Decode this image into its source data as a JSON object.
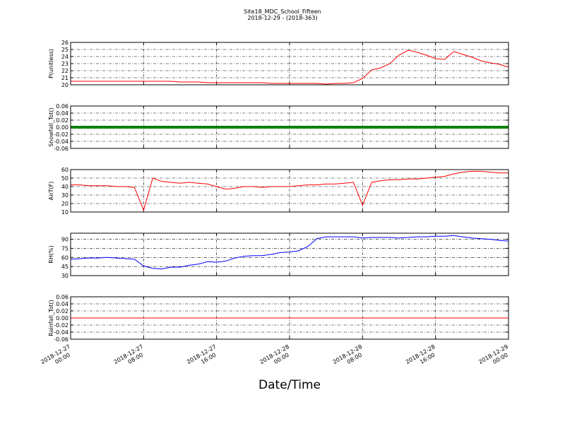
{
  "chart_data": [
    {
      "type": "line",
      "title": "Site18_MDC_School_Fifteen",
      "subtitle": "2018-12-29 - (2018-363)",
      "ylabel": "P(unitless)",
      "x": [
        "2018-12-27 00:00",
        "2018-12-27 01:00",
        "2018-12-27 02:00",
        "2018-12-27 03:00",
        "2018-12-27 04:00",
        "2018-12-27 05:00",
        "2018-12-27 06:00",
        "2018-12-27 07:00",
        "2018-12-27 08:00",
        "2018-12-27 09:00",
        "2018-12-27 10:00",
        "2018-12-27 11:00",
        "2018-12-27 12:00",
        "2018-12-27 13:00",
        "2018-12-27 14:00",
        "2018-12-27 15:00",
        "2018-12-27 16:00",
        "2018-12-27 17:00",
        "2018-12-27 18:00",
        "2018-12-27 19:00",
        "2018-12-27 20:00",
        "2018-12-27 21:00",
        "2018-12-27 22:00",
        "2018-12-27 23:00",
        "2018-12-28 00:00",
        "2018-12-28 01:00",
        "2018-12-28 02:00",
        "2018-12-28 03:00",
        "2018-12-28 04:00",
        "2018-12-28 05:00",
        "2018-12-28 06:00",
        "2018-12-28 07:00",
        "2018-12-28 08:00",
        "2018-12-28 09:00",
        "2018-12-28 10:00",
        "2018-12-28 11:00",
        "2018-12-28 12:00",
        "2018-12-28 13:00",
        "2018-12-28 14:00",
        "2018-12-28 15:00",
        "2018-12-28 16:00",
        "2018-12-28 17:00",
        "2018-12-28 18:00",
        "2018-12-28 19:00",
        "2018-12-28 20:00",
        "2018-12-28 21:00",
        "2018-12-28 22:00",
        "2018-12-28 23:00",
        "2018-12-29 00:00"
      ],
      "series": [
        {
          "name": "P",
          "color": "#ff0000",
          "values": [
            20.5,
            20.5,
            20.5,
            20.5,
            20.5,
            20.5,
            20.5,
            20.5,
            20.5,
            20.5,
            20.5,
            20.5,
            20.4,
            20.4,
            20.4,
            20.3,
            20.3,
            20.3,
            20.3,
            20.3,
            20.3,
            20.3,
            20.2,
            20.2,
            20.2,
            20.2,
            20.2,
            20.2,
            20.1,
            20.2,
            20.2,
            20.3,
            20.9,
            22.1,
            22.4,
            23.0,
            24.2,
            24.9,
            24.6,
            24.2,
            23.7,
            23.6,
            24.7,
            24.3,
            23.9,
            23.4,
            23.1,
            22.9,
            22.5
          ]
        }
      ],
      "ylim": [
        20,
        26
      ],
      "yticks": [
        20,
        21,
        22,
        23,
        24,
        25,
        26
      ]
    },
    {
      "type": "line",
      "ylabel": "Snowfall_Tot()",
      "x": [
        "2018-12-27 00:00",
        "2018-12-27 01:00",
        "2018-12-27 02:00",
        "2018-12-27 03:00",
        "2018-12-27 04:00",
        "2018-12-27 05:00",
        "2018-12-27 06:00",
        "2018-12-27 07:00",
        "2018-12-27 08:00",
        "2018-12-27 09:00",
        "2018-12-27 10:00",
        "2018-12-27 11:00",
        "2018-12-27 12:00",
        "2018-12-27 13:00",
        "2018-12-27 14:00",
        "2018-12-27 15:00",
        "2018-12-27 16:00",
        "2018-12-27 17:00",
        "2018-12-27 18:00",
        "2018-12-27 19:00",
        "2018-12-27 20:00",
        "2018-12-27 21:00",
        "2018-12-27 22:00",
        "2018-12-27 23:00",
        "2018-12-28 00:00",
        "2018-12-28 01:00",
        "2018-12-28 02:00",
        "2018-12-28 03:00",
        "2018-12-28 04:00",
        "2018-12-28 05:00",
        "2018-12-28 06:00",
        "2018-12-28 07:00",
        "2018-12-28 08:00",
        "2018-12-28 09:00",
        "2018-12-28 10:00",
        "2018-12-28 11:00",
        "2018-12-28 12:00",
        "2018-12-28 13:00",
        "2018-12-28 14:00",
        "2018-12-28 15:00",
        "2018-12-28 16:00",
        "2018-12-28 17:00",
        "2018-12-28 18:00",
        "2018-12-28 19:00",
        "2018-12-28 20:00",
        "2018-12-28 21:00",
        "2018-12-28 22:00",
        "2018-12-28 23:00",
        "2018-12-29 00:00"
      ],
      "series": [
        {
          "name": "Snowfall_Tot",
          "color": "#008000",
          "values": [
            0,
            0,
            0,
            0,
            0,
            0,
            0,
            0,
            0,
            0,
            0,
            0,
            0,
            0,
            0,
            0,
            0,
            0,
            0,
            0,
            0,
            0,
            0,
            0,
            0,
            0,
            0,
            0,
            0,
            0,
            0,
            0,
            0,
            0,
            0,
            0,
            0,
            0,
            0,
            0,
            0,
            0,
            0,
            0,
            0,
            0,
            0,
            0,
            0
          ]
        }
      ],
      "ylim": [
        -0.06,
        0.06
      ],
      "yticks": [
        {
          "value": -0.06,
          "label": "-0.06"
        },
        {
          "value": -0.04,
          "label": "-0.04"
        },
        {
          "value": -0.02,
          "label": "-0.02"
        },
        {
          "value": 0,
          "label": "0.00"
        },
        {
          "value": 0.02,
          "label": "0.02"
        },
        {
          "value": 0.04,
          "label": "0.04"
        },
        {
          "value": 0.06,
          "label": "0.06"
        }
      ]
    },
    {
      "type": "line",
      "ylabel": "AirT(F)",
      "x": [
        "2018-12-27 00:00",
        "2018-12-27 01:00",
        "2018-12-27 02:00",
        "2018-12-27 03:00",
        "2018-12-27 04:00",
        "2018-12-27 05:00",
        "2018-12-27 06:00",
        "2018-12-27 07:00",
        "2018-12-27 08:00",
        "2018-12-27 09:00",
        "2018-12-27 10:00",
        "2018-12-27 11:00",
        "2018-12-27 12:00",
        "2018-12-27 13:00",
        "2018-12-27 14:00",
        "2018-12-27 15:00",
        "2018-12-27 16:00",
        "2018-12-27 17:00",
        "2018-12-27 18:00",
        "2018-12-27 19:00",
        "2018-12-27 20:00",
        "2018-12-27 21:00",
        "2018-12-27 22:00",
        "2018-12-27 23:00",
        "2018-12-28 00:00",
        "2018-12-28 01:00",
        "2018-12-28 02:00",
        "2018-12-28 03:00",
        "2018-12-28 04:00",
        "2018-12-28 05:00",
        "2018-12-28 06:00",
        "2018-12-28 07:00",
        "2018-12-28 08:00",
        "2018-12-28 09:00",
        "2018-12-28 10:00",
        "2018-12-28 11:00",
        "2018-12-28 12:00",
        "2018-12-28 13:00",
        "2018-12-28 14:00",
        "2018-12-28 15:00",
        "2018-12-28 16:00",
        "2018-12-28 17:00",
        "2018-12-28 18:00",
        "2018-12-28 19:00",
        "2018-12-28 20:00",
        "2018-12-28 21:00",
        "2018-12-28 22:00",
        "2018-12-28 23:00",
        "2018-12-29 00:00"
      ],
      "series": [
        {
          "name": "AirT",
          "color": "#ff0000",
          "values": [
            42,
            42,
            41,
            41,
            41,
            40,
            40,
            39,
            12,
            50,
            46,
            45,
            44,
            45,
            44,
            43,
            40,
            37,
            38,
            40,
            40,
            39,
            40,
            40,
            40,
            41,
            42,
            42,
            43,
            43,
            44,
            45,
            18,
            45,
            47,
            48,
            48,
            49,
            49,
            50,
            51,
            52,
            55,
            57,
            58,
            58,
            57,
            56,
            56
          ]
        }
      ],
      "ylim": [
        10,
        60
      ],
      "yticks": [
        10,
        20,
        30,
        40,
        50,
        60
      ]
    },
    {
      "type": "line",
      "ylabel": "RH(%)",
      "x": [
        "2018-12-27 00:00",
        "2018-12-27 01:00",
        "2018-12-27 02:00",
        "2018-12-27 03:00",
        "2018-12-27 04:00",
        "2018-12-27 05:00",
        "2018-12-27 06:00",
        "2018-12-27 07:00",
        "2018-12-27 08:00",
        "2018-12-27 09:00",
        "2018-12-27 10:00",
        "2018-12-27 11:00",
        "2018-12-27 12:00",
        "2018-12-27 13:00",
        "2018-12-27 14:00",
        "2018-12-27 15:00",
        "2018-12-27 16:00",
        "2018-12-27 17:00",
        "2018-12-27 18:00",
        "2018-12-27 19:00",
        "2018-12-27 20:00",
        "2018-12-27 21:00",
        "2018-12-27 22:00",
        "2018-12-27 23:00",
        "2018-12-28 00:00",
        "2018-12-28 01:00",
        "2018-12-28 02:00",
        "2018-12-28 03:00",
        "2018-12-28 04:00",
        "2018-12-28 05:00",
        "2018-12-28 06:00",
        "2018-12-28 07:00",
        "2018-12-28 08:00",
        "2018-12-28 09:00",
        "2018-12-28 10:00",
        "2018-12-28 11:00",
        "2018-12-28 12:00",
        "2018-12-28 13:00",
        "2018-12-28 14:00",
        "2018-12-28 15:00",
        "2018-12-28 16:00",
        "2018-12-28 17:00",
        "2018-12-28 18:00",
        "2018-12-28 19:00",
        "2018-12-28 20:00",
        "2018-12-28 21:00",
        "2018-12-28 22:00",
        "2018-12-28 23:00",
        "2018-12-29 00:00"
      ],
      "series": [
        {
          "name": "RH",
          "color": "#0000ff",
          "values": [
            57,
            58,
            59,
            59,
            60,
            59,
            58,
            57,
            46,
            42,
            41,
            44,
            44,
            47,
            49,
            53,
            52,
            54,
            59,
            62,
            63,
            63,
            65,
            68,
            69,
            71,
            78,
            91,
            94,
            94,
            94,
            94,
            92,
            93,
            93,
            93,
            92,
            93,
            94,
            94,
            95,
            95,
            96,
            94,
            92,
            91,
            90,
            88,
            87
          ]
        }
      ],
      "ylim": [
        30,
        100
      ],
      "yticks": [
        30,
        45,
        60,
        75,
        90
      ]
    },
    {
      "type": "line",
      "ylabel": "Rainfall_Tot()",
      "xlabel": "Date/Time",
      "x": [
        "2018-12-27 00:00",
        "2018-12-27 01:00",
        "2018-12-27 02:00",
        "2018-12-27 03:00",
        "2018-12-27 04:00",
        "2018-12-27 05:00",
        "2018-12-27 06:00",
        "2018-12-27 07:00",
        "2018-12-27 08:00",
        "2018-12-27 09:00",
        "2018-12-27 10:00",
        "2018-12-27 11:00",
        "2018-12-27 12:00",
        "2018-12-27 13:00",
        "2018-12-27 14:00",
        "2018-12-27 15:00",
        "2018-12-27 16:00",
        "2018-12-27 17:00",
        "2018-12-27 18:00",
        "2018-12-27 19:00",
        "2018-12-27 20:00",
        "2018-12-27 21:00",
        "2018-12-27 22:00",
        "2018-12-27 23:00",
        "2018-12-28 00:00",
        "2018-12-28 01:00",
        "2018-12-28 02:00",
        "2018-12-28 03:00",
        "2018-12-28 04:00",
        "2018-12-28 05:00",
        "2018-12-28 06:00",
        "2018-12-28 07:00",
        "2018-12-28 08:00",
        "2018-12-28 09:00",
        "2018-12-28 10:00",
        "2018-12-28 11:00",
        "2018-12-28 12:00",
        "2018-12-28 13:00",
        "2018-12-28 14:00",
        "2018-12-28 15:00",
        "2018-12-28 16:00",
        "2018-12-28 17:00",
        "2018-12-28 18:00",
        "2018-12-28 19:00",
        "2018-12-28 20:00",
        "2018-12-28 21:00",
        "2018-12-28 22:00",
        "2018-12-28 23:00",
        "2018-12-29 00:00"
      ],
      "series": [
        {
          "name": "Rainfall_Tot",
          "color": "#ff0000",
          "values": [
            0,
            0,
            0,
            0,
            0,
            0,
            0,
            0,
            0,
            0,
            0,
            0,
            0,
            0,
            0,
            0,
            0,
            0,
            0,
            0,
            0,
            0,
            0,
            0,
            0,
            0,
            0,
            0,
            0,
            0,
            0,
            0,
            0,
            0,
            0,
            0,
            0,
            0,
            0,
            0,
            0,
            0,
            0,
            0,
            0,
            0,
            0,
            0,
            0
          ]
        }
      ],
      "ylim": [
        -0.06,
        0.06
      ],
      "yticks": [
        {
          "value": -0.06,
          "label": "-0.06"
        },
        {
          "value": -0.04,
          "label": "-0.04"
        },
        {
          "value": -0.02,
          "label": "-0.02"
        },
        {
          "value": 0,
          "label": "0.00"
        },
        {
          "value": 0.02,
          "label": "0.02"
        },
        {
          "value": 0.04,
          "label": "0.04"
        },
        {
          "value": 0.06,
          "label": "0.06"
        }
      ],
      "xlim": [
        "2018-12-27 00:00",
        "2018-12-29 00:00"
      ],
      "xticks": [
        "2018-12-27 00:00",
        "2018-12-27 08:00",
        "2018-12-27 16:00",
        "2018-12-28 00:00",
        "2018-12-28 08:00",
        "2018-12-28 16:00",
        "2018-12-29 00:00"
      ]
    }
  ]
}
